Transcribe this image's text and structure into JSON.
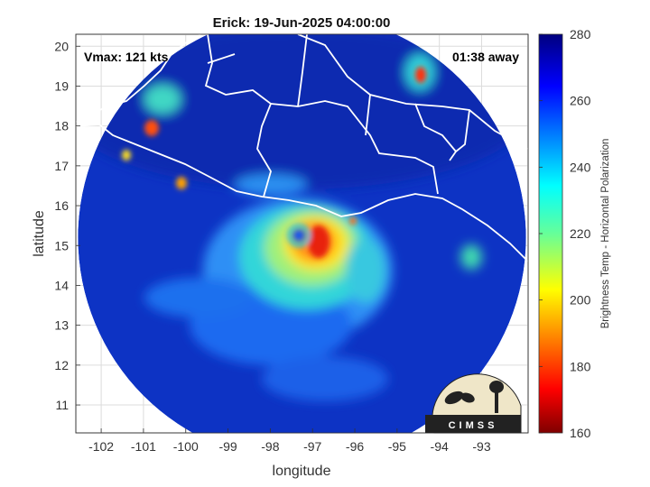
{
  "chart_data": {
    "type": "heatmap",
    "title": "Erick: 19-Jun-2025 04:00:00",
    "xlabel": "longitude",
    "ylabel": "latitude",
    "xlim": [
      -102.6,
      -91.9
    ],
    "ylim": [
      10.3,
      20.3
    ],
    "x_ticks": [
      -102,
      -101,
      -100,
      -99,
      -98,
      -97,
      -96,
      -95,
      -94,
      -93
    ],
    "y_ticks": [
      11,
      12,
      13,
      14,
      15,
      16,
      17,
      18,
      19,
      20
    ],
    "grid": true,
    "colorbar": {
      "label": "Brightness Temp - Horizontal Polarization",
      "range": [
        160,
        280
      ],
      "ticks": [
        160,
        180,
        200,
        220,
        240,
        260,
        280
      ],
      "colormap": "jet"
    },
    "swath": {
      "center": [
        -97.25,
        15.2
      ],
      "radius_deg": 5.3
    },
    "storm_center": [
      -97.2,
      15.2
    ],
    "annotations": {
      "vmax": "Vmax: 121 kts",
      "time_offset": "01:38 away"
    },
    "logo_text": "CIMSS"
  },
  "colors": {
    "background": "#0d33c4",
    "coast": "#ffffff",
    "grid": "#dcdcdc"
  }
}
